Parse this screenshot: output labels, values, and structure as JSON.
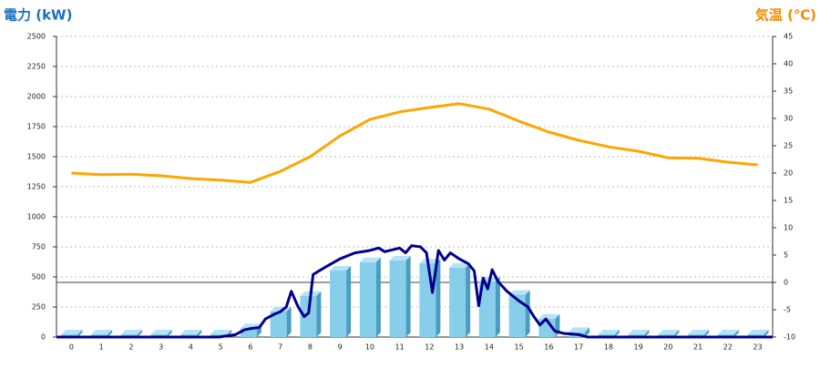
{
  "chart_data": {
    "type": "bar",
    "y_label": "電力 (kW)",
    "y2_label": "気温 (℃)",
    "categories": [
      "0",
      "1",
      "2",
      "3",
      "4",
      "5",
      "6",
      "7",
      "8",
      "9",
      "10",
      "11",
      "12",
      "13",
      "14",
      "15",
      "16",
      "17",
      "18",
      "19",
      "20",
      "21",
      "22",
      "23"
    ],
    "ylim": [
      0,
      2500
    ],
    "yticks": [
      0,
      250,
      500,
      750,
      1000,
      1250,
      1500,
      1750,
      2000,
      2250,
      2500
    ],
    "y2lim": [
      -10,
      45
    ],
    "y2ticks": [
      -10,
      -5,
      0,
      5,
      10,
      15,
      20,
      25,
      30,
      35,
      40,
      45
    ],
    "grid": true,
    "series": [
      {
        "type": "bar",
        "color": "#87ceeb",
        "values": [
          0,
          0,
          0,
          0,
          0,
          0,
          50,
          190,
          320,
          530,
          600,
          615,
          590,
          555,
          440,
          330,
          130,
          20,
          0,
          0,
          0,
          0,
          0,
          0
        ]
      },
      {
        "type": "line",
        "color": "#00008b",
        "x": [
          -0.5,
          0,
          1,
          2,
          3,
          4,
          4.95,
          5.5,
          5.8,
          6,
          6.3,
          6.5,
          6.8,
          7,
          7.2,
          7.37,
          7.6,
          7.8,
          7.95,
          8.1,
          8.5,
          9,
          9.5,
          10,
          10.3,
          10.5,
          11,
          11.2,
          11.4,
          11.7,
          11.9,
          12.1,
          12.3,
          12.5,
          12.7,
          13,
          13.3,
          13.5,
          13.65,
          13.8,
          13.95,
          14.1,
          14.3,
          14.6,
          15,
          15.3,
          15.5,
          15.7,
          15.9,
          16.2,
          16.5,
          17,
          17.3,
          18,
          20,
          22,
          23.5
        ],
        "values": [
          0,
          0,
          0,
          0,
          0,
          0,
          0,
          20,
          60,
          70,
          80,
          150,
          190,
          210,
          250,
          380,
          250,
          170,
          200,
          520,
          580,
          650,
          700,
          720,
          740,
          710,
          740,
          700,
          760,
          750,
          700,
          370,
          720,
          640,
          700,
          650,
          610,
          550,
          260,
          490,
          400,
          560,
          460,
          380,
          300,
          250,
          170,
          100,
          150,
          50,
          30,
          20,
          0,
          0,
          0,
          0,
          0
        ]
      },
      {
        "type": "line",
        "axis": "y2",
        "color": "#ffa500",
        "values": [
          20,
          19.7,
          19.8,
          19.5,
          19,
          18.7,
          18.3,
          20.3,
          23,
          26.8,
          29.8,
          31.2,
          32,
          32.7,
          31.7,
          29.5,
          27.5,
          26,
          24.8,
          24,
          22.8,
          22.7,
          22,
          21.5
        ]
      }
    ]
  }
}
